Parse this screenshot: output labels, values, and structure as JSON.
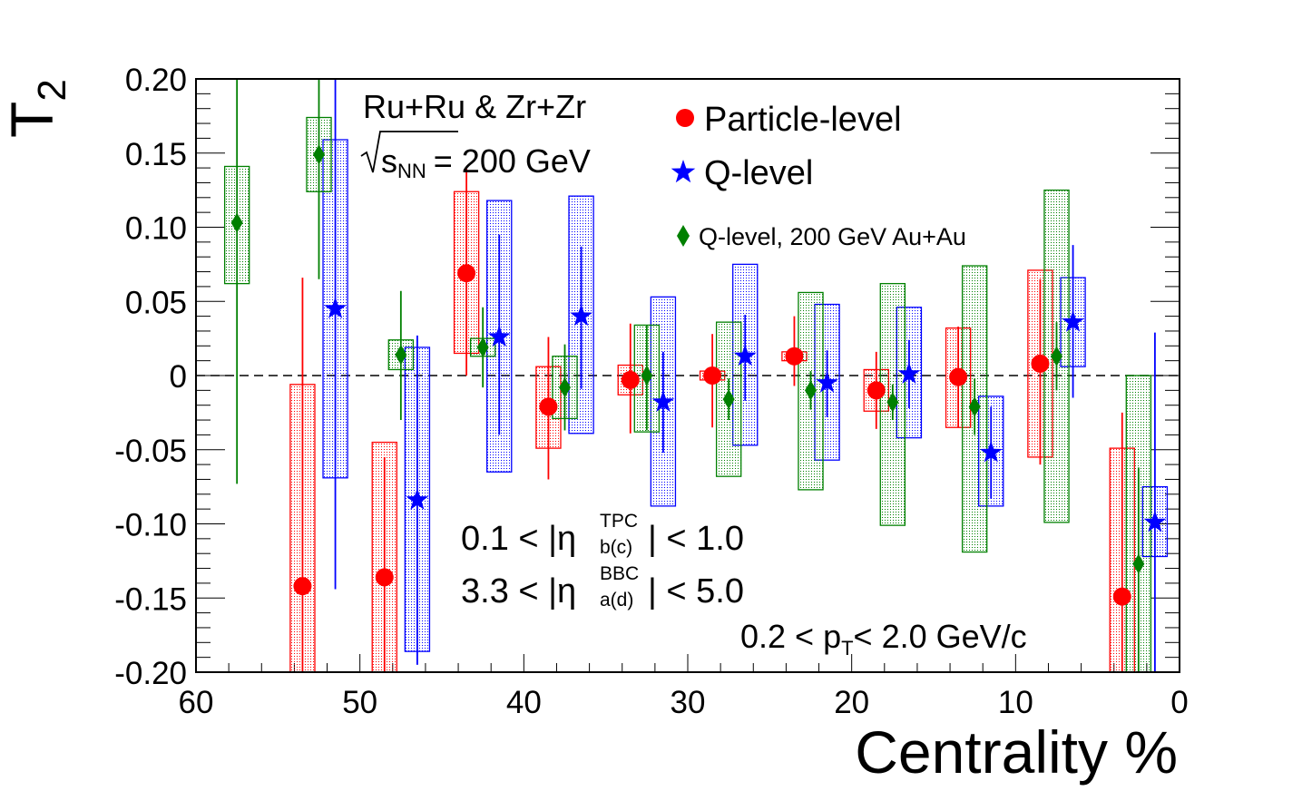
{
  "chart_data": {
    "type": "scatter",
    "xlabel": "Centrality %",
    "ylabel": "T",
    "ylabel_sub": "2",
    "xlim": [
      60,
      0
    ],
    "ylim": [
      -0.2,
      0.2
    ],
    "x_ticks": [
      "60",
      "50",
      "40",
      "30",
      "20",
      "10",
      "0"
    ],
    "y_ticks": [
      "0.20",
      "0.15",
      "0.10",
      "0.05",
      "0",
      "-0.05",
      "-0.10",
      "-0.15",
      "-0.20"
    ],
    "annotation_system": "Ru+Ru & Zr+Zr",
    "annotation_energy": {
      "sqrt": "√",
      "s": "s",
      "sub": "NN",
      "rest": "= 200 GeV"
    },
    "cut_tpc": {
      "pre": "0.1 < |η",
      "sup": "TPC",
      "sub": "b(c)",
      "post": "| < 1.0"
    },
    "cut_bbc": {
      "pre": "3.3 < |η",
      "sup": "BBC",
      "sub": "a(d)",
      "post": "| < 5.0"
    },
    "cut_pt": {
      "pre": "0.2 < p",
      "sub": "T",
      "post": "< 2.0 GeV/c"
    },
    "colors": {
      "particle": "#ff0000",
      "q": "#0000ff",
      "auau": "#008000"
    },
    "series": [
      {
        "name": "Particle-level",
        "marker": "circle",
        "points": [
          {
            "x": 53.5,
            "y": -0.142,
            "elo": -0.2,
            "ehi": 0.066,
            "slo": -0.2,
            "shi": -0.006,
            "bw": 1.5
          },
          {
            "x": 48.5,
            "y": -0.136,
            "elo": -0.2,
            "ehi": -0.055,
            "slo": -0.2,
            "shi": -0.045,
            "bw": 1.5
          },
          {
            "x": 43.5,
            "y": 0.069,
            "elo": 0.0,
            "ehi": 0.141,
            "slo": 0.015,
            "shi": 0.124,
            "bw": 1.5
          },
          {
            "x": 38.5,
            "y": -0.021,
            "elo": -0.07,
            "ehi": 0.026,
            "slo": -0.049,
            "shi": 0.006,
            "bw": 1.5
          },
          {
            "x": 33.5,
            "y": -0.003,
            "elo": -0.039,
            "ehi": 0.035,
            "slo": -0.013,
            "shi": 0.007,
            "bw": 1.5
          },
          {
            "x": 28.5,
            "y": 0.0,
            "elo": -0.035,
            "ehi": 0.028,
            "slo": -0.003,
            "shi": 0.003,
            "bw": 1.5
          },
          {
            "x": 23.5,
            "y": 0.013,
            "elo": -0.007,
            "ehi": 0.04,
            "slo": 0.01,
            "shi": 0.016,
            "bw": 1.5
          },
          {
            "x": 18.5,
            "y": -0.01,
            "elo": -0.036,
            "ehi": 0.016,
            "slo": -0.024,
            "shi": 0.004,
            "bw": 1.5
          },
          {
            "x": 13.5,
            "y": -0.001,
            "elo": -0.035,
            "ehi": 0.033,
            "slo": -0.035,
            "shi": 0.032,
            "bw": 1.5
          },
          {
            "x": 8.5,
            "y": 0.008,
            "elo": -0.06,
            "ehi": 0.065,
            "slo": -0.055,
            "shi": 0.071,
            "bw": 1.5
          },
          {
            "x": 3.5,
            "y": -0.149,
            "elo": -0.2,
            "ehi": -0.025,
            "slo": -0.2,
            "shi": -0.049,
            "bw": 1.5
          }
        ]
      },
      {
        "name": "Q-level",
        "marker": "star",
        "points": [
          {
            "x": 51.5,
            "y": 0.045,
            "elo": -0.144,
            "ehi": 0.2,
            "slo": -0.069,
            "shi": 0.159,
            "bw": 1.5
          },
          {
            "x": 46.5,
            "y": -0.084,
            "elo": -0.195,
            "ehi": 0.027,
            "slo": -0.186,
            "shi": 0.019,
            "bw": 1.5
          },
          {
            "x": 41.5,
            "y": 0.026,
            "elo": -0.04,
            "ehi": 0.095,
            "slo": -0.065,
            "shi": 0.118,
            "bw": 1.5
          },
          {
            "x": 36.5,
            "y": 0.04,
            "elo": -0.009,
            "ehi": 0.087,
            "slo": -0.039,
            "shi": 0.121,
            "bw": 1.5
          },
          {
            "x": 31.5,
            "y": -0.018,
            "elo": -0.052,
            "ehi": 0.016,
            "slo": -0.088,
            "shi": 0.053,
            "bw": 1.5
          },
          {
            "x": 26.5,
            "y": 0.013,
            "elo": -0.017,
            "ehi": 0.041,
            "slo": -0.047,
            "shi": 0.075,
            "bw": 1.5
          },
          {
            "x": 21.5,
            "y": -0.005,
            "elo": -0.028,
            "ehi": 0.017,
            "slo": -0.057,
            "shi": 0.048,
            "bw": 1.5
          },
          {
            "x": 16.5,
            "y": 0.001,
            "elo": -0.022,
            "ehi": 0.024,
            "slo": -0.042,
            "shi": 0.046,
            "bw": 1.5
          },
          {
            "x": 11.5,
            "y": -0.052,
            "elo": -0.083,
            "ehi": -0.021,
            "slo": -0.088,
            "shi": -0.014,
            "bw": 1.5
          },
          {
            "x": 6.5,
            "y": 0.036,
            "elo": -0.015,
            "ehi": 0.088,
            "slo": 0.006,
            "shi": 0.066,
            "bw": 1.5
          },
          {
            "x": 1.5,
            "y": -0.099,
            "elo": -0.2,
            "ehi": 0.029,
            "slo": -0.122,
            "shi": -0.075,
            "bw": 1.5
          }
        ]
      },
      {
        "name": "Q-level, 200 GeV Au+Au",
        "marker": "diamond",
        "points": [
          {
            "x": 57.5,
            "y": 0.103,
            "elo": -0.073,
            "ehi": 0.2,
            "slo": 0.062,
            "shi": 0.141,
            "bw": 1.5
          },
          {
            "x": 52.5,
            "y": 0.149,
            "elo": 0.065,
            "ehi": 0.2,
            "slo": 0.124,
            "shi": 0.174,
            "bw": 1.5
          },
          {
            "x": 47.5,
            "y": 0.014,
            "elo": -0.03,
            "ehi": 0.057,
            "slo": 0.004,
            "shi": 0.024,
            "bw": 1.5
          },
          {
            "x": 42.5,
            "y": 0.019,
            "elo": -0.008,
            "ehi": 0.046,
            "slo": 0.013,
            "shi": 0.025,
            "bw": 1.5
          },
          {
            "x": 37.5,
            "y": -0.008,
            "elo": -0.037,
            "ehi": 0.021,
            "slo": -0.029,
            "shi": 0.013,
            "bw": 1.5
          },
          {
            "x": 32.5,
            "y": 0.0,
            "elo": -0.037,
            "ehi": 0.034,
            "slo": -0.038,
            "shi": 0.034,
            "bw": 1.5
          },
          {
            "x": 27.5,
            "y": -0.016,
            "elo": -0.03,
            "ehi": -0.002,
            "slo": -0.068,
            "shi": 0.036,
            "bw": 1.5
          },
          {
            "x": 22.5,
            "y": -0.01,
            "elo": -0.023,
            "ehi": 0.003,
            "slo": -0.077,
            "shi": 0.056,
            "bw": 1.5
          },
          {
            "x": 17.5,
            "y": -0.018,
            "elo": -0.03,
            "ehi": -0.006,
            "slo": -0.101,
            "shi": 0.062,
            "bw": 1.5
          },
          {
            "x": 12.5,
            "y": -0.021,
            "elo": -0.04,
            "ehi": -0.002,
            "slo": -0.119,
            "shi": 0.074,
            "bw": 1.5
          },
          {
            "x": 7.5,
            "y": 0.013,
            "elo": -0.01,
            "ehi": 0.036,
            "slo": -0.099,
            "shi": 0.125,
            "bw": 1.5
          },
          {
            "x": 2.5,
            "y": -0.127,
            "elo": -0.2,
            "ehi": -0.062,
            "slo": -0.2,
            "shi": 0.0,
            "bw": 1.5
          }
        ]
      }
    ]
  }
}
